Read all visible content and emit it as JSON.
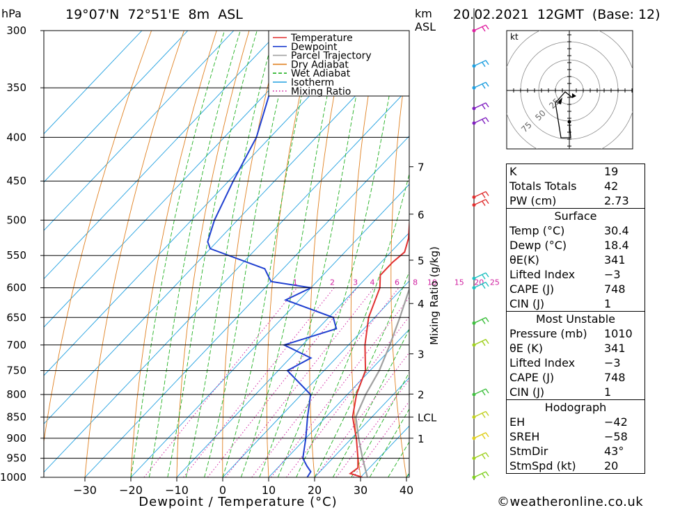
{
  "header": {
    "hpa_unit": "hPa",
    "location": "19°07'N  72°51'E  8m  ASL",
    "km_unit": "km",
    "asl_unit": "ASL",
    "datetime": "20.02.2021  12GMT  (Base: 12)"
  },
  "chart_data": {
    "type": "skew-t",
    "pressure_levels": [
      300,
      350,
      400,
      450,
      500,
      550,
      600,
      650,
      700,
      750,
      800,
      850,
      900,
      950,
      1000
    ],
    "pressure_labels": [
      "300",
      "350",
      "400",
      "450",
      "500",
      "550",
      "600",
      "650",
      "700",
      "750",
      "800",
      "850",
      "900",
      "950",
      "1000"
    ],
    "temp_ticks": [
      -30,
      -20,
      -10,
      0,
      10,
      20,
      30,
      40
    ],
    "temp_tick_labels": [
      "−30",
      "−20",
      "−10",
      "0",
      "10",
      "20",
      "30",
      "40"
    ],
    "xlabel": "Dewpoint / Temperature (°C)",
    "y2label": "Mixing Ratio (g/kg)",
    "xlim": [
      -40,
      40
    ],
    "ylim": [
      1000,
      300
    ],
    "km_labels": [
      {
        "p": 433,
        "label": "7"
      },
      {
        "p": 492,
        "label": "6"
      },
      {
        "p": 557,
        "label": "5"
      },
      {
        "p": 626,
        "label": "4"
      },
      {
        "p": 717,
        "label": "3"
      },
      {
        "p": 799,
        "label": "2"
      },
      {
        "p": 850,
        "label": "LCL"
      },
      {
        "p": 900,
        "label": "1"
      }
    ],
    "mixing_ratio_labels": [
      "1",
      "2",
      "3",
      "4",
      "6",
      "8",
      "10",
      "15",
      "20",
      "25"
    ],
    "mixing_ratio_values": [
      1,
      2,
      3,
      4,
      6,
      8,
      10,
      15,
      20,
      25
    ],
    "legend": [
      {
        "name": "Temperature",
        "color": "#e03030",
        "style": "solid"
      },
      {
        "name": "Dewpoint",
        "color": "#2040d0",
        "style": "solid"
      },
      {
        "name": "Parcel Trajectory",
        "color": "#a0a0a0",
        "style": "solid"
      },
      {
        "name": "Dry Adiabat",
        "color": "#e08020",
        "style": "solid"
      },
      {
        "name": "Wet Adiabat",
        "color": "#20b020",
        "style": "dashed"
      },
      {
        "name": "Isotherm",
        "color": "#20a0e0",
        "style": "solid"
      },
      {
        "name": "Mixing Ratio",
        "color": "#d020a0",
        "style": "dotted"
      }
    ],
    "legend_position": "top-right",
    "temperature": [
      {
        "p": 1000,
        "t": 30.4
      },
      {
        "p": 990,
        "t": 27
      },
      {
        "p": 975,
        "t": 27.5
      },
      {
        "p": 950,
        "t": 25.5
      },
      {
        "p": 900,
        "t": 21
      },
      {
        "p": 850,
        "t": 15.8
      },
      {
        "p": 800,
        "t": 12
      },
      {
        "p": 750,
        "t": 9
      },
      {
        "p": 700,
        "t": 3.6
      },
      {
        "p": 650,
        "t": -1.3
      },
      {
        "p": 600,
        "t": -5
      },
      {
        "p": 580,
        "t": -7.5
      },
      {
        "p": 560,
        "t": -7.5
      },
      {
        "p": 545,
        "t": -7
      },
      {
        "p": 525,
        "t": -9
      },
      {
        "p": 500,
        "t": -12.5
      },
      {
        "p": 450,
        "t": -17.5
      },
      {
        "p": 400,
        "t": -24
      },
      {
        "p": 350,
        "t": -33
      },
      {
        "p": 300,
        "t": -44
      }
    ],
    "dewpoint": [
      {
        "p": 1000,
        "t": 18.4
      },
      {
        "p": 985,
        "t": 18
      },
      {
        "p": 970,
        "t": 16
      },
      {
        "p": 950,
        "t": 13.5
      },
      {
        "p": 900,
        "t": 10
      },
      {
        "p": 850,
        "t": 6
      },
      {
        "p": 800,
        "t": 2
      },
      {
        "p": 750,
        "t": -8
      },
      {
        "p": 725,
        "t": -5.5
      },
      {
        "p": 700,
        "t": -14
      },
      {
        "p": 670,
        "t": -6
      },
      {
        "p": 650,
        "t": -9
      },
      {
        "p": 620,
        "t": -23
      },
      {
        "p": 600,
        "t": -20
      },
      {
        "p": 590,
        "t": -30
      },
      {
        "p": 570,
        "t": -34
      },
      {
        "p": 540,
        "t": -50
      },
      {
        "p": 530,
        "t": -52
      },
      {
        "p": 500,
        "t": -55
      },
      {
        "p": 450,
        "t": -59
      },
      {
        "p": 400,
        "t": -63
      },
      {
        "p": 350,
        "t": -70
      },
      {
        "p": 300,
        "t": -78
      }
    ],
    "parcel": [
      {
        "p": 1000,
        "t": 31.5
      },
      {
        "p": 950,
        "t": 26.5
      },
      {
        "p": 900,
        "t": 21.5
      },
      {
        "p": 850,
        "t": 16.5
      },
      {
        "p": 800,
        "t": 14
      },
      {
        "p": 750,
        "t": 12
      },
      {
        "p": 700,
        "t": 9
      },
      {
        "p": 650,
        "t": 5.5
      },
      {
        "p": 600,
        "t": 1.5
      },
      {
        "p": 550,
        "t": -3
      },
      {
        "p": 500,
        "t": -8
      },
      {
        "p": 450,
        "t": -14
      },
      {
        "p": 400,
        "t": -21
      },
      {
        "p": 350,
        "t": -30.5
      },
      {
        "p": 300,
        "t": -44
      }
    ],
    "wind_barbs": [
      {
        "p": 300,
        "color": "#e020a0"
      },
      {
        "p": 330,
        "color": "#20a0e0"
      },
      {
        "p": 350,
        "color": "#20a0e0"
      },
      {
        "p": 370,
        "color": "#8020c0"
      },
      {
        "p": 385,
        "color": "#8020c0"
      },
      {
        "p": 470,
        "color": "#e03030"
      },
      {
        "p": 480,
        "color": "#e03030"
      },
      {
        "p": 585,
        "color": "#20c0c0"
      },
      {
        "p": 600,
        "color": "#20c0c0"
      },
      {
        "p": 660,
        "color": "#40c040"
      },
      {
        "p": 700,
        "color": "#a0d020"
      },
      {
        "p": 800,
        "color": "#40c040"
      },
      {
        "p": 850,
        "color": "#c0d020"
      },
      {
        "p": 900,
        "color": "#e0d020"
      },
      {
        "p": 950,
        "color": "#a0d020"
      },
      {
        "p": 1000,
        "color": "#80d020"
      }
    ],
    "hodograph": {
      "unit": "kt",
      "ring_labels": [
        "25",
        "50",
        "75"
      ]
    }
  },
  "indices": {
    "rows": [
      {
        "label": "K",
        "value": "19"
      },
      {
        "label": "Totals Totals",
        "value": "42"
      },
      {
        "label": "PW (cm)",
        "value": "2.73"
      }
    ],
    "surface_title": "Surface",
    "surface": [
      {
        "label": "Temp (°C)",
        "value": "30.4"
      },
      {
        "label": "Dewp (°C)",
        "value": "18.4"
      },
      {
        "label": "θE(K)",
        "value": "341"
      },
      {
        "label": "Lifted Index",
        "value": "−3"
      },
      {
        "label": "CAPE (J)",
        "value": "748"
      },
      {
        "label": "CIN (J)",
        "value": "1"
      }
    ],
    "mu_title": "Most Unstable",
    "mu": [
      {
        "label": "Pressure (mb)",
        "value": "1010"
      },
      {
        "label": "θE (K)",
        "value": "341"
      },
      {
        "label": "Lifted Index",
        "value": "−3"
      },
      {
        "label": "CAPE (J)",
        "value": "748"
      },
      {
        "label": "CIN (J)",
        "value": "1"
      }
    ],
    "hodo_title": "Hodograph",
    "hodo": [
      {
        "label": "EH",
        "value": "−42"
      },
      {
        "label": "SREH",
        "value": "−58"
      },
      {
        "label": "StmDir",
        "value": "43°"
      },
      {
        "label": "StmSpd (kt)",
        "value": "20"
      }
    ]
  },
  "credit": "©weatheronline.co.uk"
}
